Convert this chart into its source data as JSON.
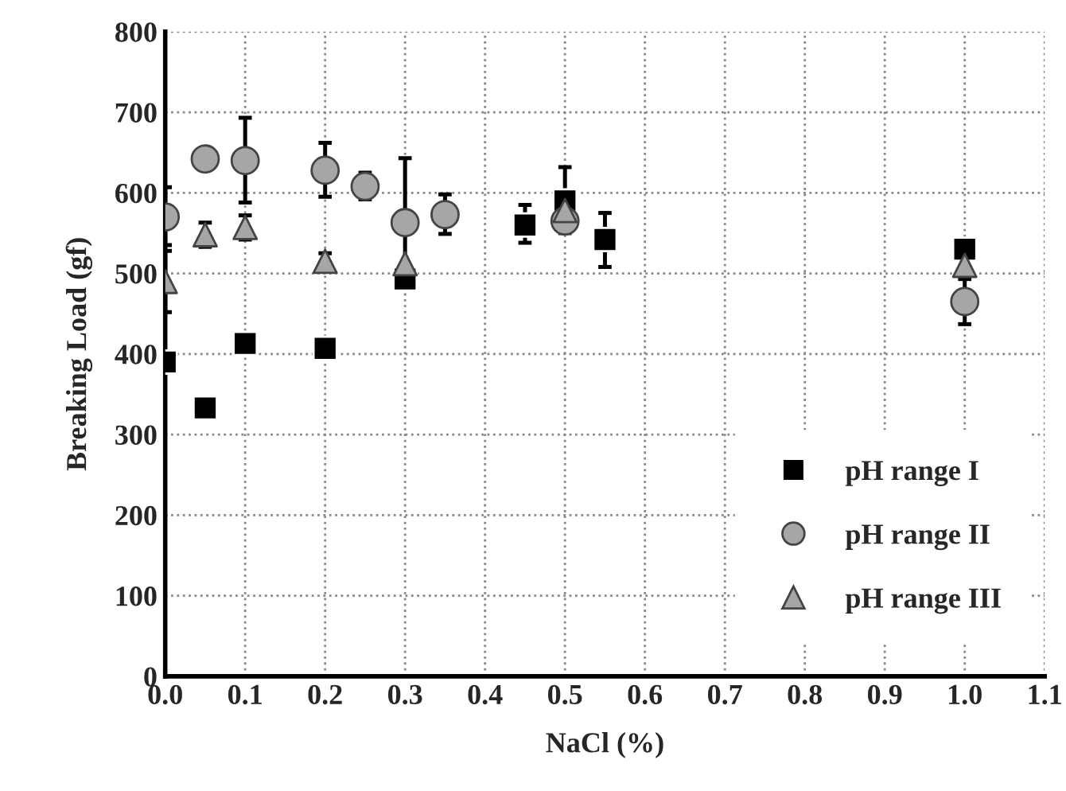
{
  "chart_data": {
    "type": "scatter",
    "xlabel": "NaCl (%)",
    "ylabel": "Breaking Load (gf)",
    "xlim": [
      0,
      1.1
    ],
    "xticks": [
      {
        "value": 0,
        "label": "0.0"
      },
      {
        "value": 0.1,
        "label": "0.1"
      },
      {
        "value": 0.2,
        "label": "0.2"
      },
      {
        "value": 0.3,
        "label": "0.3"
      },
      {
        "value": 0.4,
        "label": "0.4"
      },
      {
        "value": 0.5,
        "label": "0.5"
      },
      {
        "value": 0.6,
        "label": "0.6"
      },
      {
        "value": 0.7,
        "label": "0.7"
      },
      {
        "value": 0.8,
        "label": "0.8"
      },
      {
        "value": 0.9,
        "label": "0.9"
      },
      {
        "value": 1.0,
        "label": "1.0"
      },
      {
        "value": 1.1,
        "label": "1.1"
      }
    ],
    "ylim": [
      0,
      800
    ],
    "yticks": [
      0,
      100,
      200,
      300,
      400,
      500,
      600,
      700,
      800
    ],
    "grid": true,
    "legend": "bottom right",
    "series": [
      {
        "name": "pH range I",
        "color": "#000000",
        "marker": "square",
        "x": [
          0,
          0.05,
          0.1,
          0.2,
          0.3,
          0.45,
          0.5,
          0.55,
          1.0
        ],
        "values": [
          390,
          333,
          413,
          407,
          493,
          560,
          590,
          542,
          530
        ],
        "errors": [
          null,
          null,
          null,
          null,
          null,
          [
            538,
            585
          ],
          [
            570,
            632
          ],
          [
            508,
            575
          ],
          null
        ]
      },
      {
        "name": "pH range II",
        "color": "#a6a6a6",
        "marker": "circle",
        "x": [
          0,
          0.05,
          0.1,
          0.2,
          0.25,
          0.3,
          0.35,
          0.5,
          1.0
        ],
        "values": [
          570,
          642,
          640,
          628,
          608,
          563,
          573,
          565,
          465
        ],
        "errors": [
          [
            535,
            607
          ],
          null,
          [
            588,
            693
          ],
          [
            595,
            662
          ],
          [
            592,
            625
          ],
          [
            490,
            643
          ],
          [
            549,
            598
          ],
          [
            550,
            580
          ],
          [
            437,
            493
          ]
        ]
      },
      {
        "name": "pH range III",
        "color": "#a6a6a6",
        "marker": "triangle",
        "x": [
          0,
          0.05,
          0.1,
          0.2,
          0.3,
          0.5,
          1.0
        ],
        "values": [
          490,
          548,
          557,
          515,
          512,
          578,
          510
        ],
        "errors": [
          [
            452,
            528
          ],
          [
            533,
            563
          ],
          [
            542,
            572
          ],
          [
            505,
            525
          ],
          null,
          null,
          null
        ]
      }
    ]
  }
}
